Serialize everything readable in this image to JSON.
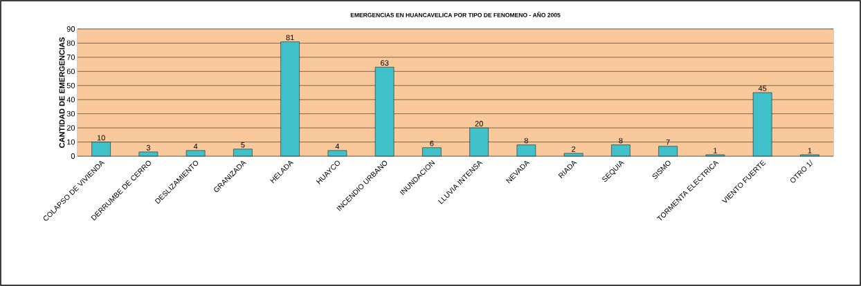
{
  "chart_data": {
    "type": "bar",
    "title": "EMERGENCIAS EN HUANCAVELICA POR TIPO DE FENOMENO - AÑO 2005",
    "ylabel": "CANTIDAD DE EMERGENCIAS",
    "categories": [
      "COLAPSO DE VIVIENDA",
      "DERRUMBE DE CERRO",
      "DESLIZAMIENTO",
      "GRANIZADA",
      "HELADA",
      "HUAYCO",
      "INCENDIO URBANO",
      "INUNDACION",
      "LLUVIA INTENSA",
      "NEVADA",
      "RIADA",
      "SEQUIA",
      "SISMO",
      "TORMENTA ELECTRICA",
      "VIENTO FUERTE",
      "OTRO 1/"
    ],
    "values": [
      10,
      3,
      4,
      5,
      81,
      4,
      63,
      6,
      20,
      8,
      2,
      8,
      7,
      1,
      45,
      1
    ],
    "color": "#40c0c8",
    "ylim": [
      0,
      90
    ],
    "yticks": [
      0,
      10,
      20,
      30,
      40,
      50,
      60,
      70,
      80,
      90
    ],
    "grid": "y",
    "data_labels": true
  }
}
